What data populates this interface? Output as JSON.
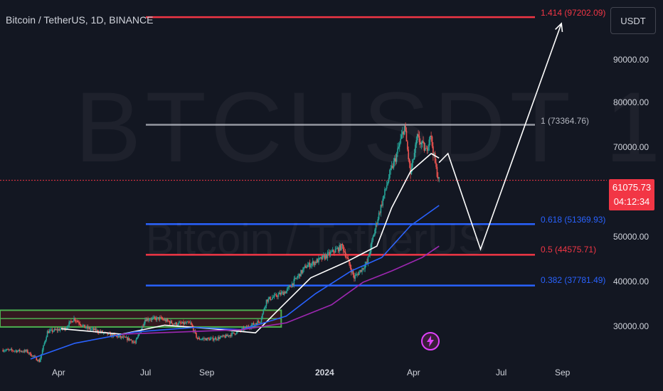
{
  "header": {
    "title": "Bitcoin / TetherUS, 1D, BINANCE"
  },
  "watermark": {
    "main": "BTCUSDT 1D",
    "sub": "Bitcoin / TetherUS"
  },
  "price_axis": {
    "unit": "USDT",
    "labels": [
      "90000.00",
      "80000.00",
      "70000.00",
      "60000.00",
      "50000.00",
      "40000.00",
      "30000.00"
    ],
    "last_price": "61075.73",
    "countdown": "04:12:34"
  },
  "time_axis": {
    "labels": [
      "Apr",
      "Jul",
      "Sep",
      "2024",
      "Apr",
      "Jul",
      "Sep"
    ]
  },
  "fib_levels": [
    {
      "label": "1.414 (97202.09)",
      "value": 97202.09,
      "color": "#f23645"
    },
    {
      "label": "1 (73364.76)",
      "value": 73364.76,
      "color": "#9598a1"
    },
    {
      "label": "0.618 (51369.93)",
      "value": 51369.93,
      "color": "#2962ff"
    },
    {
      "label": "0.5 (44575.71)",
      "value": 44575.71,
      "color": "#f23645"
    },
    {
      "label": "0.382 (37781.49)",
      "value": 37781.49,
      "color": "#2962ff"
    }
  ],
  "colors": {
    "background": "#131722",
    "up_candle": "#26a69a",
    "down_candle": "#ef5350",
    "ma_fast": "#ffffff",
    "ma_mid": "#2962ff",
    "ma_slow": "#9c27b0",
    "zone_border": "#4caf50",
    "zone_fill": "#3b1a20",
    "projection": "#ffffff",
    "last_price": "#f23645"
  },
  "chart_data": {
    "type": "candlestick",
    "symbol": "BTCUSDT",
    "interval": "1D",
    "exchange": "BINANCE",
    "y_range": [
      21500,
      101000
    ],
    "x_range": [
      "2023-01-29",
      "2024-10-05"
    ],
    "price_points": [
      [
        "2023-02-01",
        23500
      ],
      [
        "2023-02-25",
        23200
      ],
      [
        "2023-03-10",
        21000
      ],
      [
        "2023-03-18",
        27500
      ],
      [
        "2023-04-05",
        28300
      ],
      [
        "2023-04-14",
        30500
      ],
      [
        "2023-04-25",
        28500
      ],
      [
        "2023-05-20",
        26900
      ],
      [
        "2023-06-10",
        25800
      ],
      [
        "2023-06-15",
        25000
      ],
      [
        "2023-06-25",
        30300
      ],
      [
        "2023-07-10",
        30500
      ],
      [
        "2023-07-25",
        29300
      ],
      [
        "2023-08-10",
        29400
      ],
      [
        "2023-08-17",
        26000
      ],
      [
        "2023-09-01",
        25900
      ],
      [
        "2023-09-15",
        26500
      ],
      [
        "2023-10-01",
        27900
      ],
      [
        "2023-10-20",
        30000
      ],
      [
        "2023-10-26",
        34500
      ],
      [
        "2023-11-15",
        36500
      ],
      [
        "2023-12-05",
        42000
      ],
      [
        "2023-12-20",
        43600
      ],
      [
        "2024-01-11",
        46500
      ],
      [
        "2024-01-23",
        39500
      ],
      [
        "2024-02-05",
        42800
      ],
      [
        "2024-02-15",
        52000
      ],
      [
        "2024-02-28",
        62500
      ],
      [
        "2024-03-05",
        66000
      ],
      [
        "2024-03-14",
        73000
      ],
      [
        "2024-03-20",
        62500
      ],
      [
        "2024-03-27",
        70500
      ],
      [
        "2024-04-05",
        67500
      ],
      [
        "2024-04-09",
        71500
      ],
      [
        "2024-04-15",
        63500
      ],
      [
        "2024-04-18",
        61075.73
      ]
    ],
    "moving_averages": [
      {
        "color": "#ffffff",
        "points": [
          [
            "2023-04-01",
            28200
          ],
          [
            "2023-06-01",
            27000
          ],
          [
            "2023-07-15",
            29000
          ],
          [
            "2023-09-01",
            28200
          ],
          [
            "2023-10-15",
            27300
          ],
          [
            "2023-11-10",
            33000
          ],
          [
            "2023-12-10",
            39500
          ],
          [
            "2024-01-15",
            43000
          ],
          [
            "2024-02-15",
            46500
          ],
          [
            "2024-03-01",
            55000
          ],
          [
            "2024-03-20",
            63000
          ],
          [
            "2024-04-10",
            67000
          ],
          [
            "2024-04-18",
            66000
          ]
        ]
      },
      {
        "color": "#2962ff",
        "points": [
          [
            "2023-03-01",
            21500
          ],
          [
            "2023-04-15",
            25000
          ],
          [
            "2023-06-15",
            27500
          ],
          [
            "2023-08-15",
            28500
          ],
          [
            "2023-10-01",
            28000
          ],
          [
            "2023-11-15",
            31000
          ],
          [
            "2023-12-15",
            36000
          ],
          [
            "2024-01-20",
            41000
          ],
          [
            "2024-02-20",
            44000
          ],
          [
            "2024-03-20",
            51000
          ],
          [
            "2024-04-18",
            55500
          ]
        ]
      },
      {
        "color": "#9c27b0",
        "points": [
          [
            "2023-06-01",
            27000
          ],
          [
            "2023-08-01",
            27500
          ],
          [
            "2023-10-01",
            28000
          ],
          [
            "2023-11-15",
            29500
          ],
          [
            "2023-12-31",
            33500
          ],
          [
            "2024-02-01",
            38500
          ],
          [
            "2024-03-01",
            41000
          ],
          [
            "2024-04-01",
            44000
          ],
          [
            "2024-04-18",
            46500
          ]
        ]
      }
    ],
    "projection_path": [
      [
        "2024-04-18",
        65000
      ],
      [
        "2024-04-27",
        67000
      ],
      [
        "2024-05-30",
        45800
      ],
      [
        "2024-08-20",
        95800
      ]
    ],
    "support_zone": {
      "x0": "2023-01-29",
      "x1": "2023-11-10",
      "y0": 28600,
      "y1": 32300
    }
  }
}
